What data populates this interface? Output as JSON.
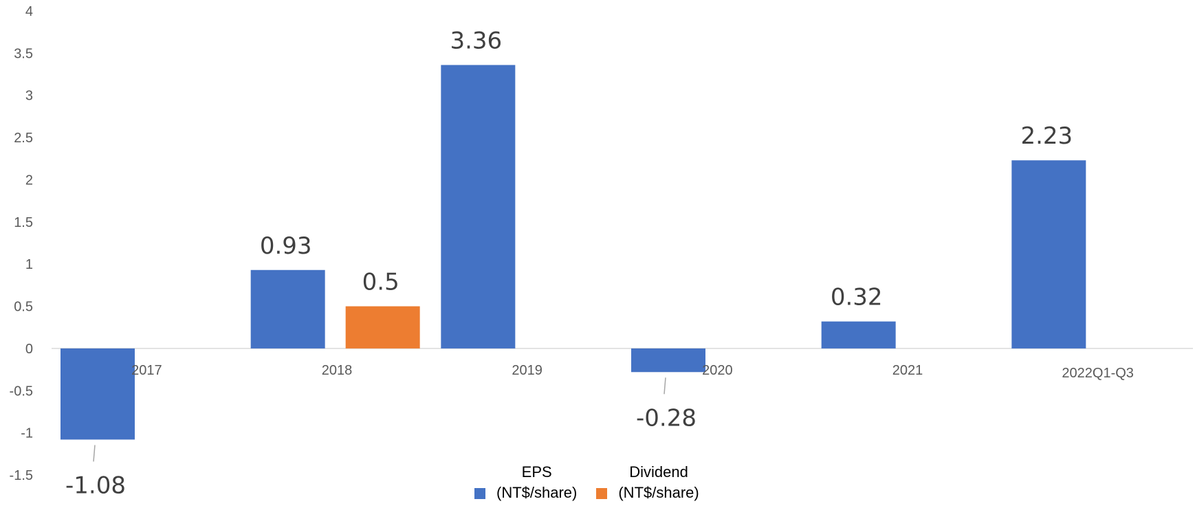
{
  "chart_data": {
    "type": "bar",
    "categories": [
      "2017",
      "2018",
      "2019",
      "2020",
      "2021",
      "2022Q1-Q3"
    ],
    "ylim": [
      -1.5,
      4
    ],
    "yticks": [
      "4",
      "3.5",
      "3",
      "2.5",
      "2",
      "1.5",
      "1",
      "0.5",
      "0",
      "-0.5",
      "-1",
      "-1.5"
    ],
    "bars": [
      {
        "category": "2017",
        "series": "eps",
        "value": -1.08,
        "label": "-1.08"
      },
      {
        "category": "2018",
        "series": "eps",
        "value": 0.93,
        "label": "0.93"
      },
      {
        "category": "2018",
        "series": "dividend",
        "value": 0.5,
        "label": "0.5"
      },
      {
        "category": "2019",
        "series": "eps",
        "value": 3.36,
        "label": "3.36"
      },
      {
        "category": "2020",
        "series": "eps",
        "value": -0.28,
        "label": "-0.28"
      },
      {
        "category": "2021",
        "series": "eps",
        "value": 0.32,
        "label": "0.32"
      },
      {
        "category": "2022Q1-Q3",
        "series": "eps",
        "value": 2.23,
        "label": "2.23"
      }
    ],
    "series": [
      {
        "key": "eps",
        "name_line1": "EPS",
        "name_line2": "(NT$/share)",
        "color": "#4472C4"
      },
      {
        "key": "dividend",
        "name_line1": "Dividend",
        "name_line2": "(NT$/share)",
        "color": "#ED7D31"
      }
    ],
    "grid": false,
    "legend_position": "bottom"
  }
}
